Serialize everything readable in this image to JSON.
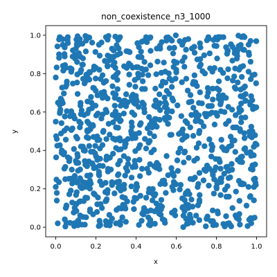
{
  "chart_data": {
    "type": "scatter",
    "title": "non_coexistence_n3_1000",
    "xlabel": "x",
    "ylabel": "y",
    "xlim": [
      -0.05,
      1.05
    ],
    "ylim": [
      -0.05,
      1.05
    ],
    "x_ticks": [
      "0.0",
      "0.2",
      "0.4",
      "0.6",
      "0.8",
      "1.0"
    ],
    "y_ticks": [
      "0.0",
      "0.2",
      "0.4",
      "0.6",
      "0.8",
      "1.0"
    ],
    "grid": false,
    "legend": "none",
    "marker_color": "#1f77b4",
    "marker": "circle",
    "n_points": 1000,
    "distribution": "uniform random points over [0, 1] x [0, 1]; values sampled, not individually readable",
    "points_sample": [
      [
        0.02,
        0.99
      ],
      [
        0.06,
        0.99
      ],
      [
        0.12,
        0.98
      ],
      [
        0.16,
        0.99
      ],
      [
        0.25,
        0.99
      ],
      [
        0.32,
        0.99
      ],
      [
        0.45,
        0.99
      ],
      [
        0.57,
        0.98
      ],
      [
        0.66,
        0.98
      ],
      [
        0.76,
        0.99
      ],
      [
        0.82,
        0.99
      ],
      [
        0.94,
        0.99
      ],
      [
        0.97,
        0.97
      ],
      [
        0.1,
        0.93
      ],
      [
        0.28,
        0.93
      ],
      [
        0.52,
        0.93
      ],
      [
        0.63,
        0.95
      ],
      [
        0.88,
        0.94
      ],
      [
        0.0,
        0.78
      ],
      [
        0.05,
        0.83
      ],
      [
        0.2,
        0.83
      ],
      [
        0.41,
        0.8
      ],
      [
        0.6,
        0.82
      ],
      [
        0.78,
        0.81
      ],
      [
        0.96,
        0.81
      ],
      [
        0.03,
        0.66
      ],
      [
        0.18,
        0.62
      ],
      [
        0.35,
        0.63
      ],
      [
        0.55,
        0.64
      ],
      [
        0.82,
        0.64
      ],
      [
        0.99,
        0.62
      ],
      [
        0.0,
        0.55
      ],
      [
        0.12,
        0.52
      ],
      [
        0.3,
        0.52
      ],
      [
        0.48,
        0.52
      ],
      [
        0.67,
        0.52
      ],
      [
        0.9,
        0.52
      ],
      [
        0.03,
        0.4
      ],
      [
        0.22,
        0.41
      ],
      [
        0.45,
        0.41
      ],
      [
        0.62,
        0.41
      ],
      [
        0.85,
        0.4
      ],
      [
        1.0,
        0.43
      ],
      [
        0.08,
        0.3
      ],
      [
        0.26,
        0.29
      ],
      [
        0.5,
        0.31
      ],
      [
        0.74,
        0.3
      ],
      [
        0.98,
        0.3
      ],
      [
        0.0,
        0.21
      ],
      [
        0.15,
        0.21
      ],
      [
        0.34,
        0.2
      ],
      [
        0.58,
        0.21
      ],
      [
        0.8,
        0.21
      ],
      [
        0.96,
        0.21
      ],
      [
        0.05,
        0.1
      ],
      [
        0.23,
        0.1
      ],
      [
        0.44,
        0.1
      ],
      [
        0.66,
        0.1
      ],
      [
        0.88,
        0.1
      ],
      [
        0.01,
        0.02
      ],
      [
        0.11,
        0.01
      ],
      [
        0.3,
        0.02
      ],
      [
        0.47,
        0.01
      ],
      [
        0.66,
        0.02
      ],
      [
        0.87,
        0.01
      ],
      [
        0.99,
        0.05
      ]
    ]
  }
}
